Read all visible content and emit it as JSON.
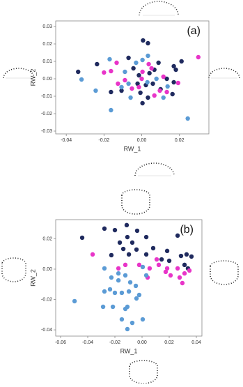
{
  "chart_data": [
    {
      "type": "scatter",
      "label": "(a)",
      "x_label": "RW_1",
      "y_label": "RW_2",
      "xlim": [
        -0.0456,
        0.0356
      ],
      "ylim": [
        -0.0316,
        0.0332
      ],
      "xticks": [
        -0.04,
        -0.02,
        {
          "value": 0,
          "label": "0.00"
        },
        0.02
      ],
      "yticks": [
        -0.03,
        -0.02,
        -0.01,
        {
          "value": 0,
          "label": "0.00"
        },
        0.01,
        0.02,
        0.03
      ],
      "series": [
        {
          "color": "#1f2a5e",
          "x": [
            0.0007,
            0.0033,
            -0.0337,
            -0.007,
            0.0089,
            0.017,
            0.0211,
            0.0181,
            -0.0163,
            0.0004,
            0.0033,
            0.01,
            0.0041,
            -0.0015,
            -0.0022,
            -0.0007,
            0.0059,
            0.017,
            0.0133,
            -0.0044,
            -0.0107,
            0.0067,
            -0.0237,
            0.0163,
            0.0022
          ],
          "values": [
            0.022,
            0.0204,
            0.004,
            0.012,
            0.0092,
            0.0072,
            0.01,
            0.0052,
            -0.0076,
            -0.014,
            -0.0108,
            -0.006,
            0.0032,
            0.002,
            -0.0028,
            -0.008,
            -0.0028,
            -0.002,
            0,
            0.006,
            -0.0068,
            0.0052,
            0.0084,
            -0.0088,
            -0.0036
          ]
        },
        {
          "color": "#e834c8",
          "x": [
            0.03,
            -0.0133,
            -0.0163,
            -0.02,
            0.0052,
            0.0037,
            0.0115,
            0,
            -0.0015,
            0.0096,
            0.0193,
            0.0004,
            -0.0052,
            -0.0089,
            0.0067,
            0.0133,
            -0.0126
          ],
          "values": [
            0.0124,
            0.0092,
            0.0044,
            0.0036,
            0.006,
            0.0084,
            0.0012,
            0,
            -0.0048,
            -0.0068,
            -0.0024,
            0.004,
            -0.0056,
            -0.0008,
            -0.0096,
            -0.0076,
            -0.0028
          ]
        },
        {
          "color": "#5b9bd5",
          "x": [
            0.0033,
            -0.017,
            -0.0319,
            -0.0244,
            -0.0163,
            -0.0059,
            0.0137,
            0.0244,
            -0.003,
            0.0004,
            -0.0089,
            0.0078,
            -0.007,
            0.003,
            0.0115,
            -0.0107
          ],
          "values": [
            0.0132,
            0.0112,
            -0.0004,
            -0.0068,
            -0.018,
            -0.0108,
            -0.0044,
            -0.0228,
            0.0092,
            0.0108,
            0.004,
            0,
            -0.0028,
            -0.002,
            -0.0108,
            -0.0048
          ]
        }
      ]
    },
    {
      "type": "scatter",
      "label": "(b)",
      "x_label": "RW_1",
      "y_label": "RW_2",
      "xlim": [
        -0.0636,
        0.0441
      ],
      "ylim": [
        -0.0441,
        0.0326
      ],
      "xticks": [
        -0.06,
        -0.04,
        -0.02,
        {
          "value": 0,
          "label": "0.00"
        },
        0.02,
        0.04
      ],
      "yticks": [
        -0.04,
        -0.02,
        {
          "value": 0,
          "label": "0.00"
        },
        0.02
      ],
      "series": [
        {
          "color": "#1f2a5e",
          "x": [
            -0.0441,
            -0.0277,
            -0.02,
            -0.0113,
            -0.0036,
            -0.0108,
            -0.0164,
            -0.0072,
            0.0031,
            -0.0138,
            -0.0041,
            0.0082,
            0.0031,
            -0.0097,
            -0.0226,
            0.0185,
            0.0262,
            0.0287,
            0.0328,
            0.0313,
            0.02,
            0.0364,
            0.0144,
            0.0338
          ],
          "values": [
            0.0207,
            0.0267,
            0.0257,
            0.029,
            0.0253,
            0.0211,
            0.0175,
            0.0175,
            0.0211,
            0.0133,
            0.0129,
            0.0138,
            0.0097,
            0.0097,
            0.0092,
            0.012,
            0.0221,
            0.0087,
            0.0097,
            0.0028,
            0.0055,
            0.0083,
            0.0064,
            0.0005
          ]
        },
        {
          "color": "#e834c8",
          "x": [
            -0.0364,
            -0.0123,
            -0.0174,
            -0.0021,
            0.0056,
            0.0108,
            0.0041,
            0.0123,
            0.0185,
            0.021,
            0.0277,
            0.0297,
            0.0313,
            0.0349,
            0.0174,
            0.0262
          ],
          "values": [
            0.0097,
            0.0028,
            0.0005,
            0.0028,
            0.0005,
            0.0064,
            -0.0055,
            0.0028,
            0.0005,
            -0.0041,
            -0.0055,
            -0.0092,
            -0.0028,
            -0.0009,
            -0.0018,
            0.0005
          ]
        },
        {
          "color": "#5b9bd5",
          "x": [
            -0.0497,
            -0.0277,
            -0.0174,
            -0.0226,
            -0.0123,
            -0.0087,
            -0.0236,
            -0.0277,
            -0.02,
            -0.0149,
            -0.0097,
            -0.0174,
            -0.0046,
            -0.0287,
            -0.0215,
            -0.0123,
            -0.0041,
            -0.0021,
            0.0005,
            -0.0108,
            -0.0149,
            -0.0108,
            -0.0072,
            0.0031,
            0.0005
          ],
          "values": [
            -0.0211,
            0.0005,
            -0.0028,
            -0.0055,
            -0.0041,
            -0.0087,
            -0.0133,
            -0.0147,
            -0.0156,
            -0.0156,
            -0.0147,
            -0.0074,
            -0.011,
            -0.0248,
            -0.0248,
            -0.0262,
            -0.0193,
            -0.017,
            -0.0331,
            -0.0248,
            -0.0331,
            -0.0395,
            -0.0354,
            -0.0041,
            0.0014
          ]
        }
      ]
    }
  ]
}
